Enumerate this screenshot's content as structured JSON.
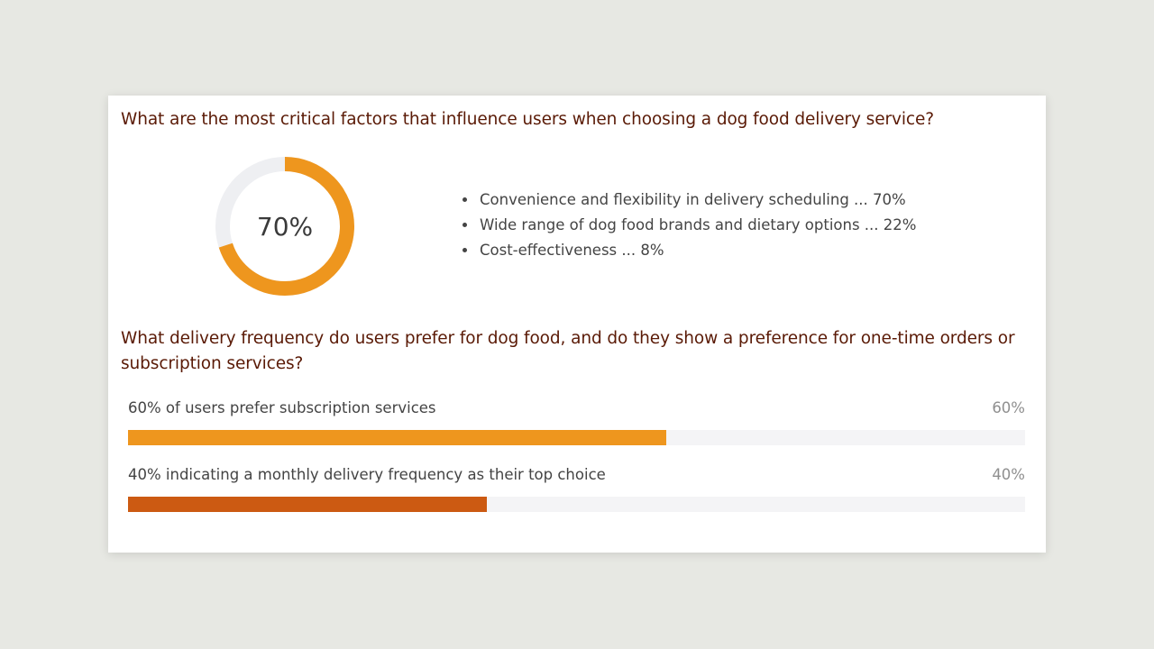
{
  "q1": {
    "title": "What are the most critical factors that influence users when choosing a dog food delivery service?",
    "donut_label": "70%",
    "items": [
      "Convenience and flexibility in delivery scheduling ... 70%",
      "Wide range of dog food brands and dietary options ... 22%",
      "Cost-effectiveness ... 8%"
    ]
  },
  "q2": {
    "title": "What delivery frequency do users prefer for dog food, and do they show a preference for one-time orders or subscription services?",
    "bars": [
      {
        "label": "60% of users prefer subscription services",
        "pct_text": "60%"
      },
      {
        "label": "40% indicating a monthly delivery frequency as their top choice",
        "pct_text": "40%"
      }
    ]
  },
  "colors": {
    "accent": "#ee961e",
    "accent_dark": "#cc5a12",
    "track": "#eeeff2",
    "title": "#5a1a06"
  },
  "chart_data": [
    {
      "type": "pie",
      "categories": [
        "Convenience and flexibility in delivery scheduling"
      ],
      "values": [
        70
      ],
      "ylim": [
        0,
        100
      ]
    },
    {
      "type": "bar",
      "categories": [
        "60% of users prefer subscription services",
        "40% indicating a monthly delivery frequency as their top choice"
      ],
      "values": [
        60,
        40
      ],
      "ylim": [
        0,
        100
      ]
    }
  ]
}
